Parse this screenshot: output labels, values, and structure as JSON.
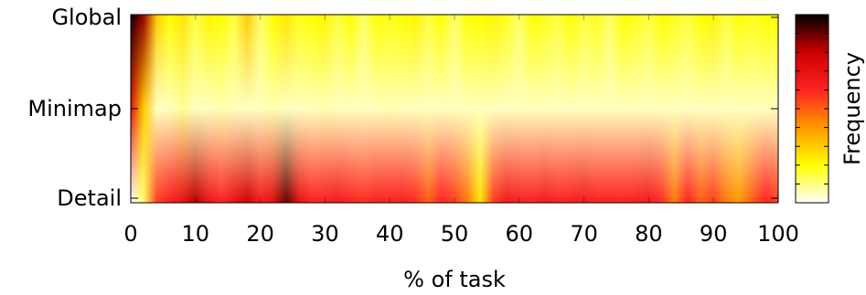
{
  "chart_data": {
    "type": "heatmap",
    "xlabel": "% of task",
    "ylabel": "",
    "colorbar_label": "Frequency",
    "x_ticks": [
      0,
      10,
      20,
      30,
      40,
      50,
      60,
      70,
      80,
      90,
      100
    ],
    "xlim": [
      0,
      100
    ],
    "y_categories": [
      "Global",
      "Minimap",
      "Detail"
    ],
    "colormap": [
      "#ffffff",
      "#ffff00",
      "#ff9900",
      "#ff2222",
      "#cc0000",
      "#000000"
    ],
    "x": [
      0,
      2,
      4,
      6,
      8,
      10,
      12,
      14,
      16,
      18,
      20,
      22,
      24,
      26,
      28,
      30,
      32,
      34,
      36,
      38,
      40,
      42,
      44,
      46,
      48,
      50,
      52,
      54,
      56,
      58,
      60,
      62,
      64,
      66,
      68,
      70,
      72,
      74,
      76,
      78,
      80,
      82,
      84,
      86,
      88,
      90,
      92,
      94,
      96,
      98,
      100
    ],
    "global": [
      0.98,
      0.85,
      0.3,
      0.2,
      0.25,
      0.15,
      0.22,
      0.2,
      0.15,
      0.3,
      0.12,
      0.2,
      0.25,
      0.18,
      0.2,
      0.22,
      0.15,
      0.2,
      0.12,
      0.2,
      0.18,
      0.2,
      0.22,
      0.15,
      0.2,
      0.12,
      0.2,
      0.2,
      0.22,
      0.18,
      0.12,
      0.2,
      0.18,
      0.15,
      0.2,
      0.15,
      0.18,
      0.12,
      0.2,
      0.18,
      0.15,
      0.2,
      0.18,
      0.15,
      0.2,
      0.22,
      0.15,
      0.2,
      0.18,
      0.2,
      0.2
    ],
    "minimap": [
      0.7,
      0.3,
      0.05,
      0.05,
      0.08,
      0.05,
      0.05,
      0.06,
      0.05,
      0.05,
      0.05,
      0.06,
      0.05,
      0.05,
      0.05,
      0.06,
      0.05,
      0.05,
      0.05,
      0.05,
      0.06,
      0.05,
      0.05,
      0.05,
      0.05,
      0.05,
      0.05,
      0.05,
      0.05,
      0.05,
      0.05,
      0.05,
      0.05,
      0.05,
      0.05,
      0.05,
      0.05,
      0.05,
      0.05,
      0.05,
      0.05,
      0.05,
      0.05,
      0.05,
      0.05,
      0.05,
      0.05,
      0.05,
      0.05,
      0.05,
      0.05
    ],
    "detail": [
      0.0,
      0.12,
      0.55,
      0.62,
      0.7,
      0.82,
      0.68,
      0.6,
      0.7,
      0.78,
      0.65,
      0.72,
      0.9,
      0.7,
      0.6,
      0.62,
      0.65,
      0.6,
      0.58,
      0.62,
      0.6,
      0.62,
      0.58,
      0.5,
      0.6,
      0.55,
      0.45,
      0.25,
      0.55,
      0.65,
      0.62,
      0.6,
      0.65,
      0.6,
      0.62,
      0.65,
      0.6,
      0.62,
      0.6,
      0.62,
      0.65,
      0.58,
      0.45,
      0.6,
      0.5,
      0.55,
      0.45,
      0.4,
      0.5,
      0.6,
      0.55
    ]
  }
}
